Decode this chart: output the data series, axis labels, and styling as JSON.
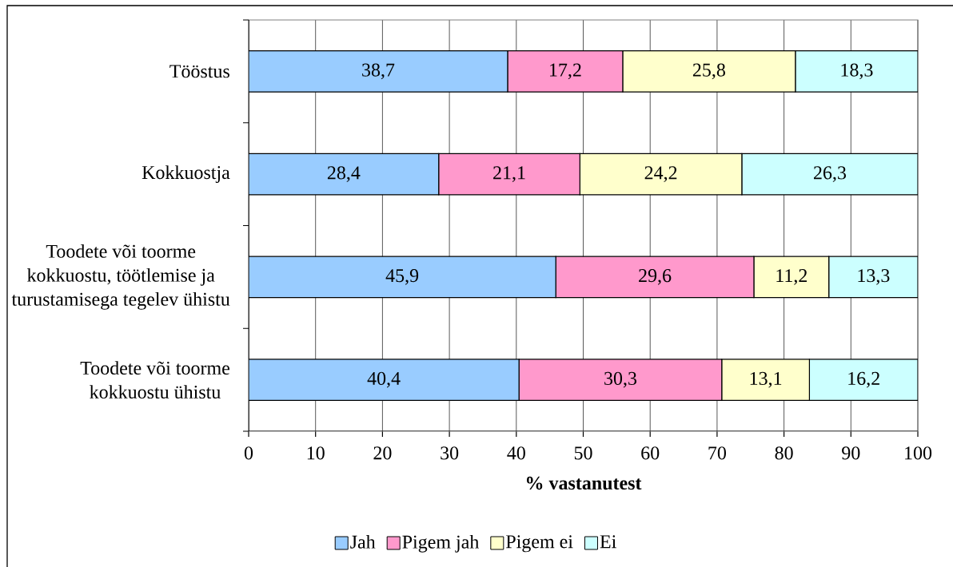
{
  "chart_data": {
    "type": "bar",
    "orientation": "horizontal",
    "stacked": true,
    "categories": [
      "Tööstus",
      "Kokkuostja",
      "Toodete või toorme kokkuostu, töötlemise ja turustamisega tegelev ühistu",
      "Toodete või toorme kokkuostu ühistu"
    ],
    "series": [
      {
        "name": "Jah",
        "color": "#99ccff",
        "values": [
          38.7,
          28.4,
          45.9,
          40.4
        ],
        "value_labels": [
          "38,7",
          "28,4",
          "45,9",
          "40,4"
        ]
      },
      {
        "name": "Pigem jah",
        "color": "#ff99cc",
        "values": [
          17.2,
          21.1,
          29.6,
          30.3
        ],
        "value_labels": [
          "17,2",
          "21,1",
          "29,6",
          "30,3"
        ]
      },
      {
        "name": "Pigem ei",
        "color": "#ffffcc",
        "values": [
          25.8,
          24.2,
          11.2,
          13.1
        ],
        "value_labels": [
          "25,8",
          "24,2",
          "11,2",
          "13,1"
        ]
      },
      {
        "name": "Ei",
        "color": "#ccffff",
        "values": [
          18.3,
          26.3,
          13.3,
          16.2
        ],
        "value_labels": [
          "18,3",
          "26,3",
          "13,3",
          "16,2"
        ]
      }
    ],
    "xlabel": "% vastanutest",
    "xlim": [
      0,
      100
    ],
    "xticks": [
      0,
      10,
      20,
      30,
      40,
      50,
      60,
      70,
      80,
      90,
      100
    ],
    "grid": "x",
    "legend": "bottom"
  }
}
